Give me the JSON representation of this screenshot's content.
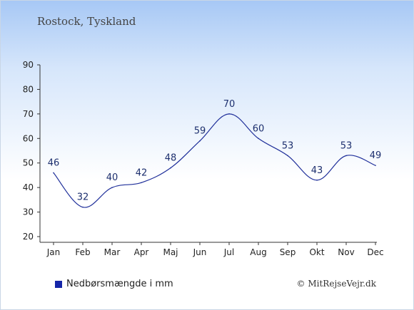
{
  "title": "Rostock, Tyskland",
  "colors": {
    "line": "#1f2f9a",
    "legend_swatch": "#1526a8"
  },
  "legend": {
    "label": "Nedbørsmængde i mm"
  },
  "credit": "© MitRejseVejr.dk",
  "chart_data": {
    "type": "line",
    "title": "Rostock, Tyskland",
    "categories": [
      "Jan",
      "Feb",
      "Mar",
      "Apr",
      "Maj",
      "Jun",
      "Jul",
      "Aug",
      "Sep",
      "Okt",
      "Nov",
      "Dec"
    ],
    "series": [
      {
        "name": "Nedbørsmængde i mm",
        "values": [
          46,
          32,
          40,
          42,
          48,
          59,
          70,
          60,
          53,
          43,
          53,
          49
        ]
      }
    ],
    "yticks": [
      20,
      30,
      40,
      50,
      60,
      70,
      80,
      90
    ],
    "ylim": [
      20,
      90
    ],
    "grid": false,
    "legend_position": "bottom-left"
  }
}
